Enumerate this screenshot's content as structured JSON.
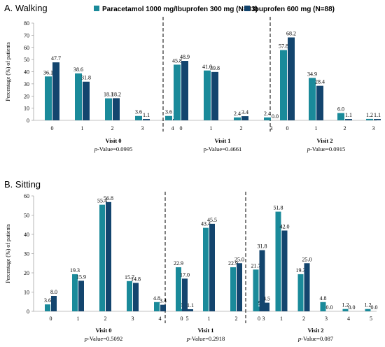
{
  "legend": [
    {
      "name": "Paracetamol 1000 mg/Ibuprofen 300 mg (N=83)",
      "color": "#1a8a9a"
    },
    {
      "name": "Ibuprofen 600 mg (N=88)",
      "color": "#13456e"
    }
  ],
  "chart_data": [
    {
      "type": "bar",
      "title": "A. Walking",
      "ylabel": "Percentage (%) of patients",
      "ylim": [
        0,
        80
      ],
      "yticks": [
        0,
        10,
        20,
        30,
        40,
        50,
        60,
        70,
        80
      ],
      "groups": [
        {
          "label": "Visit 0",
          "p_prefix": "p",
          "p_text": "-Value=0.0995",
          "categories": [
            "0",
            "1",
            "2",
            "3",
            "4"
          ],
          "series": [
            {
              "name": "Paracetamol 1000 mg/Ibuprofen 300 mg (N=83)",
              "values": [
                36.1,
                38.6,
                18.1,
                3.6,
                3.6
              ]
            },
            {
              "name": "Ibuprofen 600 mg (N=88)",
              "values": [
                47.7,
                31.8,
                18.2,
                1.1,
                1.1
              ]
            }
          ]
        },
        {
          "label": "Visit 1",
          "p_prefix": "",
          "p_text": "p-Value=0.4661",
          "categories": [
            "0",
            "1",
            "2",
            "3"
          ],
          "series": [
            {
              "name": "Paracetamol 1000 mg/Ibuprofen 300 mg (N=83)",
              "values": [
                45.8,
                41.0,
                2.4,
                2.4
              ]
            },
            {
              "name": "Ibuprofen 600 mg (N=88)",
              "values": [
                48.9,
                39.8,
                3.4,
                0.0
              ]
            }
          ]
        },
        {
          "label": "Visit 2",
          "p_prefix": "p",
          "p_text": "-Value=0.0915",
          "categories": [
            "0",
            "1",
            "2",
            "3"
          ],
          "series": [
            {
              "name": "Paracetamol 1000 mg/Ibuprofen 300 mg (N=83)",
              "values": [
                57.8,
                34.9,
                6.0,
                1.2
              ]
            },
            {
              "name": "Ibuprofen 600 mg (N=88)",
              "values": [
                68.2,
                28.4,
                1.1,
                1.1
              ]
            }
          ]
        }
      ]
    },
    {
      "type": "bar",
      "title": "B. Sitting",
      "ylabel": "Percentage (%) of patients",
      "ylim": [
        0,
        60
      ],
      "yticks": [
        0,
        10,
        20,
        30,
        40,
        50,
        60
      ],
      "groups": [
        {
          "label": "Visit 0",
          "p_prefix": "p",
          "p_text": "-Value=0.5092",
          "categories": [
            "0",
            "1",
            "2",
            "3",
            "4",
            "5"
          ],
          "series": [
            {
              "name": "Paracetamol 1000 mg/Ibuprofen 300 mg (N=83)",
              "values": [
                3.6,
                19.3,
                55.4,
                15.7,
                4.8,
                1.2
              ]
            },
            {
              "name": "Ibuprofen 600 mg (N=88)",
              "values": [
                8.0,
                15.9,
                56.8,
                14.8,
                3.4,
                1.1
              ]
            }
          ]
        },
        {
          "label": "Visit 1",
          "p_prefix": "p",
          "p_text": "-Value=0.2918",
          "categories": [
            "0",
            "1",
            "2",
            "3"
          ],
          "series": [
            {
              "name": "Paracetamol 1000 mg/Ibuprofen 300 mg (N=83)",
              "values": [
                22.9,
                43.4,
                22.9,
                2.4
              ]
            },
            {
              "name": "Ibuprofen 600 mg (N=88)",
              "values": [
                17.0,
                45.5,
                25.0,
                4.5
              ]
            }
          ]
        },
        {
          "label": "Visit 2",
          "p_prefix": "p",
          "p_text": "-Value=0.087",
          "categories": [
            "0",
            "1",
            "2",
            "3",
            "4",
            "5"
          ],
          "series": [
            {
              "name": "Paracetamol 1000 mg/Ibuprofen 300 mg (N=83)",
              "values": [
                21.7,
                51.8,
                19.3,
                4.8,
                1.2,
                1.2
              ]
            },
            {
              "name": "Ibuprofen 600 mg (N=88)",
              "values": [
                31.8,
                42.0,
                25.0,
                0.0,
                0.0,
                0.0
              ]
            }
          ]
        }
      ]
    }
  ]
}
